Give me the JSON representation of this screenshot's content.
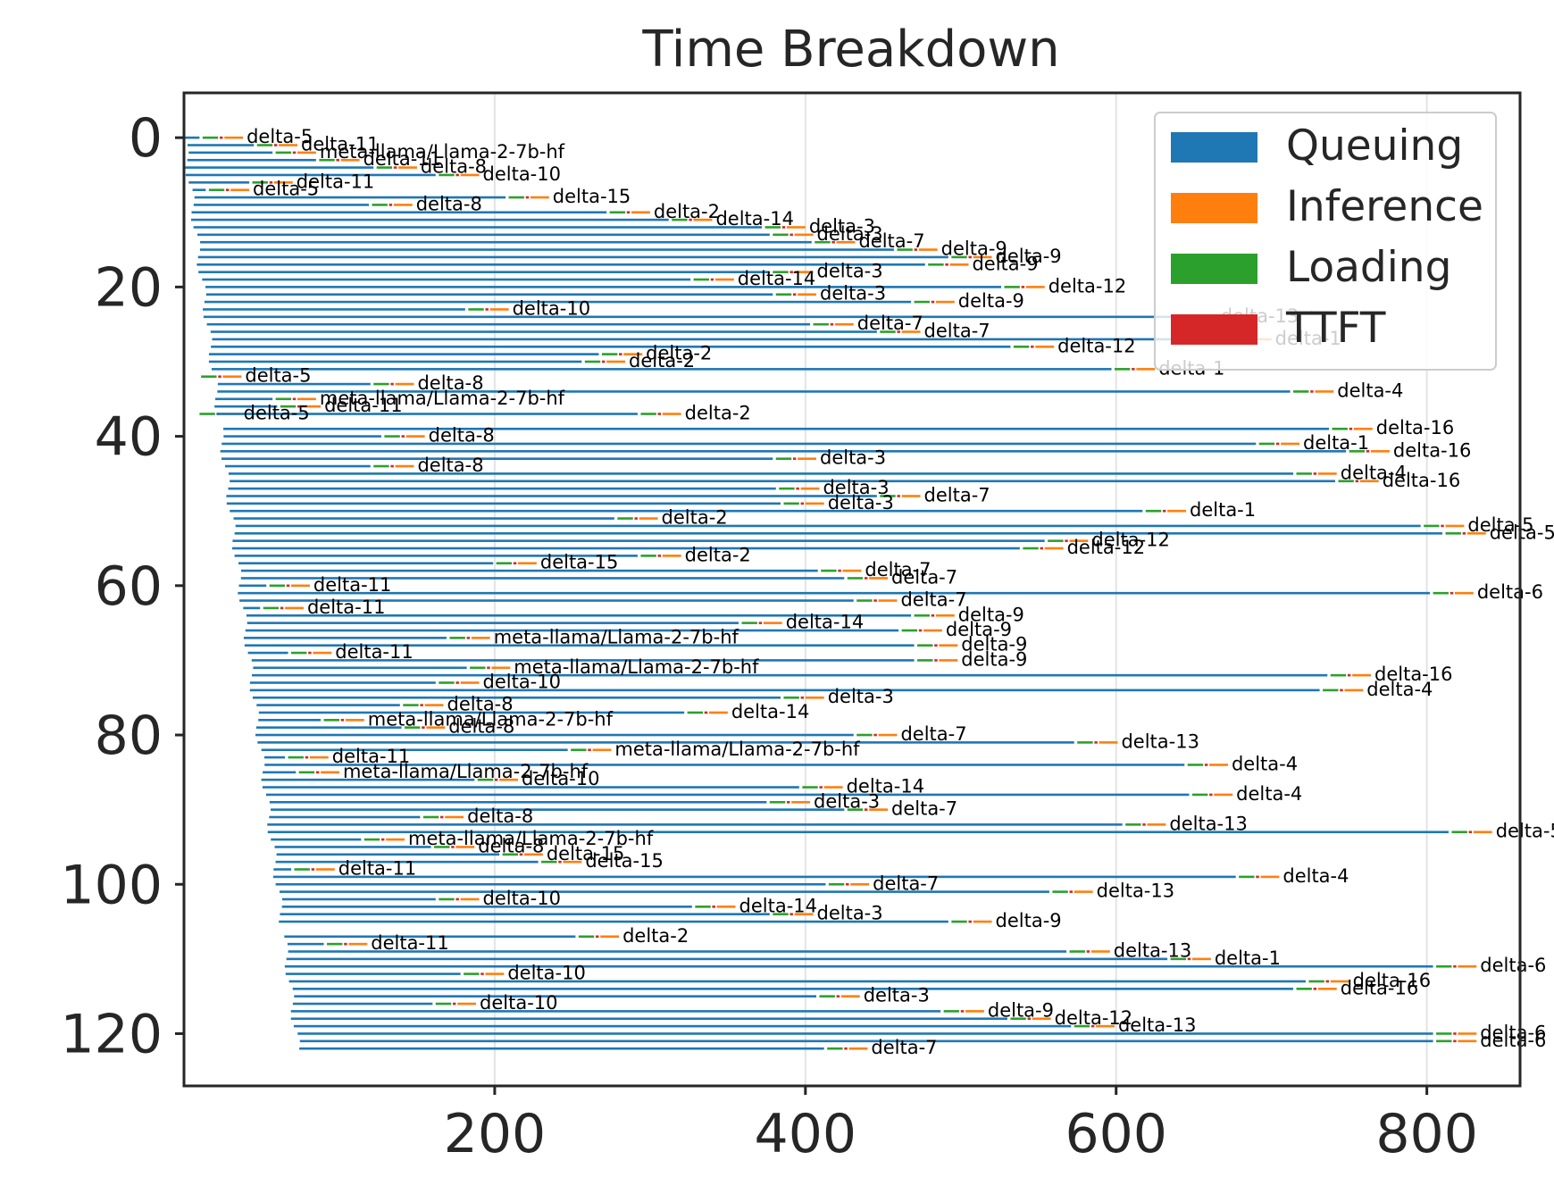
{
  "chart_data": {
    "type": "bar",
    "orientation": "horizontal-stacked-gantt",
    "title": "Time Breakdown",
    "xlabel": "",
    "ylabel": "",
    "xlim": [
      0,
      860
    ],
    "ylim": [
      127,
      -6
    ],
    "x_ticks": [
      200,
      400,
      600,
      800
    ],
    "y_ticks": [
      0,
      20,
      40,
      60,
      80,
      100,
      120
    ],
    "grid": "x-axis vertical lines",
    "legend_position": "top-right",
    "series": [
      {
        "name": "Queuing",
        "color": "#1f77b4"
      },
      {
        "name": "Inference",
        "color": "#ff7f0e"
      },
      {
        "name": "Loading",
        "color": "#2ca02c"
      },
      {
        "name": "TTFT",
        "color": "#d62728"
      }
    ],
    "label_rows": [
      {
        "y": 0,
        "label": "delta-5"
      },
      {
        "y": 1,
        "label": "delta-11"
      },
      {
        "y": 2,
        "label": "meta-llama/Llama-2-7b-hf"
      },
      {
        "y": 3,
        "label": "delta-11"
      },
      {
        "y": 4,
        "label": "delta-8"
      },
      {
        "y": 5,
        "label": "delta-10"
      },
      {
        "y": 6,
        "label": "delta-11"
      },
      {
        "y": 7,
        "label": "delta-5"
      },
      {
        "y": 8,
        "label": "delta-15"
      },
      {
        "y": 9,
        "label": "delta-8"
      },
      {
        "y": 10,
        "label": "delta-2"
      },
      {
        "y": 11,
        "label": "delta-14"
      },
      {
        "y": 12,
        "label": "delta-3"
      },
      {
        "y": 13,
        "label": "delta-3"
      },
      {
        "y": 14,
        "label": "delta-7"
      },
      {
        "y": 15,
        "label": "delta-9"
      },
      {
        "y": 16,
        "label": "delta-9"
      },
      {
        "y": 17,
        "label": "delta-9"
      },
      {
        "y": 18,
        "label": "delta-3"
      },
      {
        "y": 19,
        "label": "delta-14"
      },
      {
        "y": 20,
        "label": "delta-12"
      },
      {
        "y": 21,
        "label": "delta-3"
      },
      {
        "y": 22,
        "label": "delta-9"
      },
      {
        "y": 23,
        "label": "delta-10"
      },
      {
        "y": 24,
        "label": "delta-13"
      },
      {
        "y": 25,
        "label": "delta-7"
      },
      {
        "y": 26,
        "label": "delta-7"
      },
      {
        "y": 27,
        "label": "delta-1"
      },
      {
        "y": 28,
        "label": "delta-12"
      },
      {
        "y": 29,
        "label": "delta-2"
      },
      {
        "y": 30,
        "label": "delta-2"
      },
      {
        "y": 31,
        "label": "delta-1"
      },
      {
        "y": 32,
        "label": "delta-5"
      },
      {
        "y": 33,
        "label": "delta-8"
      },
      {
        "y": 34,
        "label": "delta-4"
      },
      {
        "y": 35,
        "label": "meta-llama/Llama-2-7b-hf"
      },
      {
        "y": 36,
        "label": "delta-11"
      },
      {
        "y": 37,
        "label": "delta-5"
      },
      {
        "y": 37,
        "label": "delta-2"
      },
      {
        "y": 39,
        "label": "delta-16"
      },
      {
        "y": 40,
        "label": "delta-8"
      },
      {
        "y": 41,
        "label": "delta-1"
      },
      {
        "y": 42,
        "label": "delta-16"
      },
      {
        "y": 43,
        "label": "delta-3"
      },
      {
        "y": 44,
        "label": "delta-8"
      },
      {
        "y": 45,
        "label": "delta-4"
      },
      {
        "y": 46,
        "label": "delta-16"
      },
      {
        "y": 47,
        "label": "delta-3"
      },
      {
        "y": 48,
        "label": "delta-7"
      },
      {
        "y": 49,
        "label": "delta-3"
      },
      {
        "y": 50,
        "label": "delta-1"
      },
      {
        "y": 51,
        "label": "delta-2"
      },
      {
        "y": 52,
        "label": "delta-5"
      },
      {
        "y": 53,
        "label": "delta-5"
      },
      {
        "y": 54,
        "label": "delta-12"
      },
      {
        "y": 55,
        "label": "delta-12"
      },
      {
        "y": 56,
        "label": "delta-2"
      },
      {
        "y": 57,
        "label": "delta-15"
      },
      {
        "y": 58,
        "label": "delta-7"
      },
      {
        "y": 59,
        "label": "delta-7"
      },
      {
        "y": 60,
        "label": "delta-11"
      },
      {
        "y": 61,
        "label": "delta-6"
      },
      {
        "y": 62,
        "label": "delta-7"
      },
      {
        "y": 63,
        "label": "delta-11"
      },
      {
        "y": 64,
        "label": "delta-9"
      },
      {
        "y": 65,
        "label": "delta-14"
      },
      {
        "y": 66,
        "label": "delta-9"
      },
      {
        "y": 67,
        "label": "meta-llama/Llama-2-7b-hf"
      },
      {
        "y": 68,
        "label": "delta-9"
      },
      {
        "y": 69,
        "label": "delta-11"
      },
      {
        "y": 70,
        "label": "delta-9"
      },
      {
        "y": 71,
        "label": "meta-llama/Llama-2-7b-hf"
      },
      {
        "y": 72,
        "label": "delta-16"
      },
      {
        "y": 73,
        "label": "delta-10"
      },
      {
        "y": 74,
        "label": "delta-4"
      },
      {
        "y": 75,
        "label": "delta-3"
      },
      {
        "y": 76,
        "label": "delta-8"
      },
      {
        "y": 77,
        "label": "delta-14"
      },
      {
        "y": 78,
        "label": "meta-llama/Llama-2-7b-hf"
      },
      {
        "y": 79,
        "label": "delta-8"
      },
      {
        "y": 80,
        "label": "delta-7"
      },
      {
        "y": 81,
        "label": "delta-13"
      },
      {
        "y": 82,
        "label": "meta-llama/Llama-2-7b-hf"
      },
      {
        "y": 83,
        "label": "delta-11"
      },
      {
        "y": 84,
        "label": "delta-4"
      },
      {
        "y": 85,
        "label": "meta-llama/Llama-2-7b-hf"
      },
      {
        "y": 86,
        "label": "delta-10"
      },
      {
        "y": 87,
        "label": "delta-14"
      },
      {
        "y": 88,
        "label": "delta-4"
      },
      {
        "y": 89,
        "label": "delta-3"
      },
      {
        "y": 90,
        "label": "delta-7"
      },
      {
        "y": 91,
        "label": "delta-8"
      },
      {
        "y": 92,
        "label": "delta-13"
      },
      {
        "y": 93,
        "label": "delta-5"
      },
      {
        "y": 94,
        "label": "meta-llama/Llama-2-7b-hf"
      },
      {
        "y": 95,
        "label": "delta-8"
      },
      {
        "y": 96,
        "label": "delta-15"
      },
      {
        "y": 97,
        "label": "delta-15"
      },
      {
        "y": 98,
        "label": "delta-11"
      },
      {
        "y": 99,
        "label": "delta-4"
      },
      {
        "y": 100,
        "label": "delta-7"
      },
      {
        "y": 101,
        "label": "delta-13"
      },
      {
        "y": 102,
        "label": "delta-10"
      },
      {
        "y": 103,
        "label": "delta-14"
      },
      {
        "y": 104,
        "label": "delta-3"
      },
      {
        "y": 105,
        "label": "delta-9"
      },
      {
        "y": 107,
        "label": "delta-2"
      },
      {
        "y": 108,
        "label": "delta-11"
      },
      {
        "y": 109,
        "label": "delta-13"
      },
      {
        "y": 110,
        "label": "delta-1"
      },
      {
        "y": 111,
        "label": "delta-6"
      },
      {
        "y": 112,
        "label": "delta-10"
      },
      {
        "y": 113,
        "label": "delta-16"
      },
      {
        "y": 114,
        "label": "delta-16"
      },
      {
        "y": 115,
        "label": "delta-3"
      },
      {
        "y": 116,
        "label": "delta-10"
      },
      {
        "y": 117,
        "label": "delta-9"
      },
      {
        "y": 118,
        "label": "delta-12"
      },
      {
        "y": 119,
        "label": "delta-13"
      },
      {
        "y": 120,
        "label": "delta-6"
      },
      {
        "y": 121,
        "label": "delta-6"
      },
      {
        "y": 122,
        "label": "delta-7"
      }
    ],
    "label_ends": [
      38,
      73,
      85,
      113,
      150,
      190,
      70,
      42,
      235,
      147,
      300,
      340,
      400,
      405,
      432,
      485,
      520,
      505,
      405,
      354,
      554,
      407,
      496,
      209,
      665,
      431,
      474,
      700,
      560,
      295,
      284,
      625,
      37,
      148,
      740,
      85,
      88,
      36,
      320,
      765,
      155,
      718,
      776,
      407,
      148,
      742,
      769,
      409,
      474,
      412,
      645,
      305,
      824,
      838,
      582,
      566,
      320,
      227,
      436,
      453,
      81,
      830,
      459,
      77,
      496,
      385,
      488,
      197,
      498,
      95,
      498,
      210,
      764,
      190,
      759,
      412,
      167,
      350,
      116,
      168,
      459,
      601,
      275,
      93,
      672,
      100,
      215,
      424,
      675,
      403,
      453,
      180,
      632,
      842,
      142,
      187,
      231,
      256,
      97,
      705,
      441,
      585,
      190,
      355,
      405,
      520,
      280,
      118,
      596,
      661,
      832,
      206,
      750,
      742,
      435,
      188,
      515,
      558,
      599,
      832,
      832,
      440
    ],
    "bars": [
      {
        "y": 0,
        "queue_start": 0,
        "segments": [
          [
            0,
            8,
            "green"
          ],
          [
            10,
            36,
            "orange"
          ]
        ]
      }
    ]
  },
  "legend": {
    "items": [
      {
        "label": "Queuing",
        "color": "#1f77b4"
      },
      {
        "label": "Inference",
        "color": "#ff7f0e"
      },
      {
        "label": "Loading",
        "color": "#2ca02c"
      },
      {
        "label": "TTFT",
        "color": "#d62728"
      }
    ]
  },
  "axes": {
    "x_tick_labels": [
      "200",
      "400",
      "600",
      "800"
    ],
    "y_tick_labels": [
      "0",
      "20",
      "40",
      "60",
      "80",
      "100",
      "120"
    ]
  }
}
